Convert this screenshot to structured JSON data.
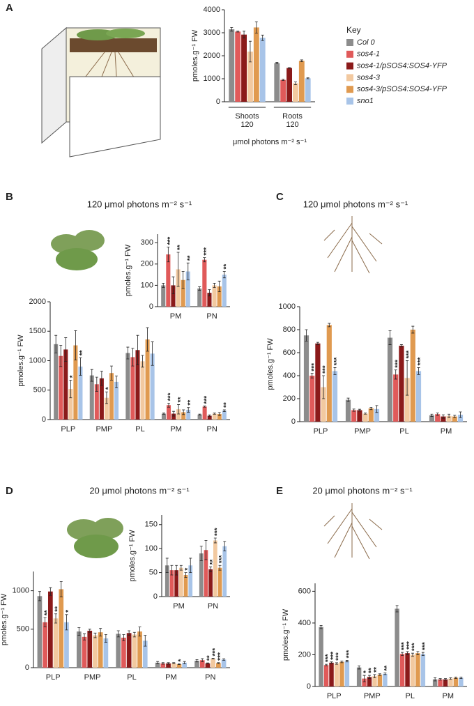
{
  "chart_data": [
    {
      "type": "bar",
      "panel": "A",
      "ylabel": "pmoles.g⁻¹ FW",
      "xlabel": "μmol photons m⁻² s⁻¹",
      "legend_title": "Key",
      "categories": [
        "Shoots",
        "Roots"
      ],
      "category_sublabels": [
        "120",
        "120"
      ],
      "ylim": [
        0,
        4000
      ],
      "yticks": [
        0,
        1000,
        2000,
        3000,
        4000
      ],
      "series": [
        {
          "name": "Col 0",
          "color": "#8c8c8c",
          "values": [
            3150,
            1680
          ],
          "errors": [
            80,
            30
          ]
        },
        {
          "name": "sos4-1",
          "color": "#e05a5a",
          "values": [
            3050,
            950
          ],
          "errors": [
            20,
            30
          ]
        },
        {
          "name": "sos4-1/pSOS4:SOS4-YFP",
          "color": "#8b1a1a",
          "values": [
            2920,
            1470
          ],
          "errors": [
            150,
            15
          ]
        },
        {
          "name": "sos4-3",
          "color": "#f2c9a0",
          "values": [
            2180,
            800
          ],
          "errors": [
            450,
            60
          ]
        },
        {
          "name": "sos4-3/pSOS4:SOS4-YFP",
          "color": "#e09a50",
          "values": [
            3230,
            1780
          ],
          "errors": [
            250,
            40
          ]
        },
        {
          "name": "sno1",
          "color": "#a8c4e8",
          "values": [
            2780,
            1020
          ],
          "errors": [
            120,
            20
          ]
        }
      ]
    },
    {
      "type": "bar",
      "panel": "B",
      "title": "120 μmol photons m⁻² s⁻¹",
      "ylabel": "pmoles.g⁻¹ FW",
      "categories": [
        "PLP",
        "PMP",
        "PL",
        "PM",
        "PN"
      ],
      "ylim": [
        0,
        2000
      ],
      "yticks": [
        0,
        500,
        1000,
        1500,
        2000
      ],
      "series": [
        {
          "color": "#8c8c8c",
          "values": [
            1280,
            750,
            1130,
            100,
            85
          ],
          "errors": [
            150,
            100,
            100,
            10,
            8
          ]
        },
        {
          "color": "#e05a5a",
          "values": [
            1080,
            600,
            1060,
            245,
            220
          ],
          "errors": [
            180,
            120,
            150,
            35,
            10
          ],
          "annotations": [
            null,
            null,
            null,
            "***",
            "***"
          ]
        },
        {
          "color": "#8b1a1a",
          "values": [
            1190,
            700,
            1180,
            100,
            65
          ],
          "errors": [
            200,
            120,
            250,
            40,
            15
          ]
        },
        {
          "color": "#f2c9a0",
          "values": [
            520,
            370,
            990,
            175,
            100
          ],
          "errors": [
            150,
            100,
            100,
            80,
            10
          ],
          "annotations": [
            "*",
            "*",
            null,
            "**",
            null
          ]
        },
        {
          "color": "#e09a50",
          "values": [
            1260,
            790,
            1360,
            125,
            95
          ],
          "errors": [
            250,
            120,
            200,
            40,
            25
          ]
        },
        {
          "color": "#a8c4e8",
          "values": [
            900,
            640,
            1120,
            165,
            150
          ],
          "errors": [
            150,
            100,
            200,
            40,
            15
          ],
          "annotations": [
            "**",
            null,
            null,
            "**",
            "**"
          ]
        }
      ]
    },
    {
      "type": "bar",
      "ylabel": "pmoles.g⁻¹ FW",
      "categories": [
        "PM",
        "PN"
      ],
      "ylim": [
        0,
        340
      ],
      "yticks": [
        0,
        100,
        200,
        300
      ],
      "series": [
        {
          "color": "#8c8c8c",
          "values": [
            100,
            85
          ],
          "errors": [
            10,
            8
          ]
        },
        {
          "color": "#e05a5a",
          "values": [
            245,
            220
          ],
          "errors": [
            35,
            10
          ],
          "annotations": [
            "***",
            "***"
          ]
        },
        {
          "color": "#8b1a1a",
          "values": [
            100,
            65
          ],
          "errors": [
            40,
            15
          ]
        },
        {
          "color": "#f2c9a0",
          "values": [
            175,
            100
          ],
          "errors": [
            80,
            10
          ],
          "annotations": [
            "**",
            null
          ]
        },
        {
          "color": "#e09a50",
          "values": [
            125,
            95
          ],
          "errors": [
            40,
            25
          ]
        },
        {
          "color": "#a8c4e8",
          "values": [
            165,
            150
          ],
          "errors": [
            40,
            15
          ],
          "annotations": [
            "**",
            "**"
          ]
        }
      ]
    },
    {
      "type": "bar",
      "panel": "C",
      "title": "120 μmol photons m⁻² s⁻¹",
      "ylabel": "pmoles.g⁻¹ FW",
      "categories": [
        "PLP",
        "PMP",
        "PL",
        "PM"
      ],
      "ylim": [
        0,
        1000
      ],
      "yticks": [
        0,
        200,
        400,
        600,
        800,
        1000
      ],
      "series": [
        {
          "color": "#8c8c8c",
          "values": [
            750,
            190,
            730,
            55
          ],
          "errors": [
            50,
            15,
            60,
            10
          ]
        },
        {
          "color": "#e05a5a",
          "values": [
            400,
            100,
            410,
            65
          ],
          "errors": [
            20,
            10,
            40,
            10
          ],
          "annotations": [
            "***",
            null,
            "***",
            null
          ]
        },
        {
          "color": "#8b1a1a",
          "values": [
            680,
            100,
            660,
            45
          ],
          "errors": [
            10,
            8,
            10,
            15
          ]
        },
        {
          "color": "#f2c9a0",
          "values": [
            300,
            70,
            380,
            50
          ],
          "errors": [
            100,
            5,
            150,
            15
          ],
          "annotations": [
            "***",
            null,
            "***",
            null
          ]
        },
        {
          "color": "#e09a50",
          "values": [
            840,
            115,
            800,
            45
          ],
          "errors": [
            15,
            10,
            30,
            10
          ]
        },
        {
          "color": "#a8c4e8",
          "values": [
            440,
            110,
            440,
            60
          ],
          "errors": [
            30,
            30,
            30,
            25
          ],
          "annotations": [
            "***",
            null,
            "***",
            null
          ]
        }
      ]
    },
    {
      "type": "bar",
      "panel": "D",
      "title": "20 μmol photons m⁻² s⁻¹",
      "ylabel": "pmoles.g⁻¹ FW",
      "categories": [
        "PLP",
        "PMP",
        "PL",
        "PM",
        "PN"
      ],
      "ylim": [
        0,
        1250
      ],
      "yticks": [
        0,
        500,
        1000
      ],
      "series": [
        {
          "color": "#8c8c8c",
          "values": [
            930,
            470,
            440,
            65,
            90
          ],
          "errors": [
            60,
            50,
            40,
            15,
            15
          ]
        },
        {
          "color": "#e05a5a",
          "values": [
            590,
            400,
            390,
            55,
            97
          ],
          "errors": [
            60,
            40,
            40,
            10,
            20
          ],
          "annotations": [
            "**",
            null,
            null,
            null,
            null
          ]
        },
        {
          "color": "#8b1a1a",
          "values": [
            990,
            480,
            450,
            55,
            57
          ],
          "errors": [
            50,
            20,
            30,
            10,
            5
          ],
          "annotations": [
            null,
            null,
            null,
            null,
            "**"
          ]
        },
        {
          "color": "#f2c9a0",
          "values": [
            640,
            420,
            430,
            60,
            117
          ],
          "errors": [
            60,
            30,
            30,
            5,
            5
          ],
          "annotations": [
            "**",
            null,
            null,
            null,
            "***"
          ]
        },
        {
          "color": "#e09a50",
          "values": [
            1020,
            460,
            470,
            45,
            60
          ],
          "errors": [
            100,
            50,
            60,
            5,
            5
          ],
          "annotations": [
            null,
            null,
            null,
            "*",
            "***"
          ]
        },
        {
          "color": "#a8c4e8",
          "values": [
            590,
            380,
            350,
            65,
            105
          ],
          "errors": [
            100,
            50,
            70,
            15,
            10
          ],
          "annotations": [
            "*",
            null,
            null,
            null,
            null
          ]
        }
      ]
    },
    {
      "type": "bar",
      "ylabel": "pmoles.g⁻¹ FW",
      "categories": [
        "PM",
        "PN"
      ],
      "ylim": [
        0,
        170
      ],
      "yticks": [
        0,
        50,
        100,
        150
      ],
      "series": [
        {
          "color": "#8c8c8c",
          "values": [
            65,
            90
          ],
          "errors": [
            15,
            15
          ]
        },
        {
          "color": "#e05a5a",
          "values": [
            55,
            97
          ],
          "errors": [
            10,
            20
          ]
        },
        {
          "color": "#8b1a1a",
          "values": [
            55,
            57
          ],
          "errors": [
            10,
            5
          ],
          "annotations": [
            null,
            "**"
          ]
        },
        {
          "color": "#f2c9a0",
          "values": [
            60,
            117
          ],
          "errors": [
            5,
            5
          ],
          "annotations": [
            null,
            "***"
          ]
        },
        {
          "color": "#e09a50",
          "values": [
            45,
            60
          ],
          "errors": [
            5,
            5
          ],
          "annotations": [
            "*",
            "***"
          ]
        },
        {
          "color": "#a8c4e8",
          "values": [
            65,
            105
          ],
          "errors": [
            15,
            10
          ]
        }
      ]
    },
    {
      "type": "bar",
      "panel": "E",
      "title": "20 μmol photons m⁻² s⁻¹",
      "ylabel": "pmoles.g⁻¹ FW",
      "categories": [
        "PLP",
        "PMP",
        "PL",
        "PM"
      ],
      "ylim": [
        0,
        650
      ],
      "yticks": [
        0,
        200,
        400,
        600
      ],
      "series": [
        {
          "color": "#8c8c8c",
          "values": [
            375,
            120,
            490,
            45
          ],
          "errors": [
            10,
            10,
            20,
            10
          ]
        },
        {
          "color": "#e05a5a",
          "values": [
            135,
            50,
            205,
            45
          ],
          "errors": [
            5,
            20,
            10,
            5
          ],
          "annotations": [
            "***",
            "*",
            "***",
            null
          ]
        },
        {
          "color": "#8b1a1a",
          "values": [
            150,
            60,
            210,
            45
          ],
          "errors": [
            5,
            10,
            10,
            5
          ],
          "annotations": [
            "***",
            "**",
            "***",
            null
          ]
        },
        {
          "color": "#f2c9a0",
          "values": [
            145,
            65,
            200,
            50
          ],
          "errors": [
            5,
            10,
            10,
            5
          ],
          "annotations": [
            "***",
            "**",
            "***",
            null
          ]
        },
        {
          "color": "#e09a50",
          "values": [
            155,
            75,
            210,
            55
          ],
          "errors": [
            5,
            5,
            10,
            5
          ]
        },
        {
          "color": "#a8c4e8",
          "values": [
            160,
            80,
            205,
            55
          ],
          "errors": [
            5,
            5,
            10,
            5
          ],
          "annotations": [
            "***",
            "**",
            "***",
            null
          ]
        }
      ]
    }
  ]
}
